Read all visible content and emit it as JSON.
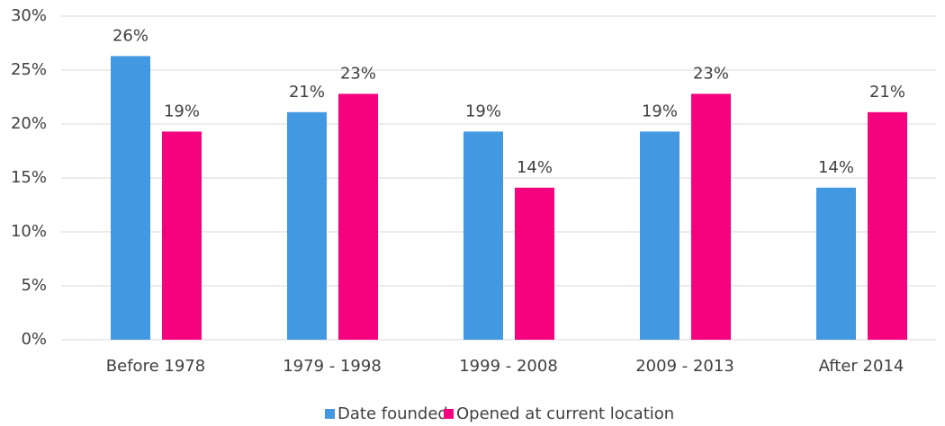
{
  "chart_data": {
    "type": "bar",
    "categories": [
      "Before 1978",
      "1979 - 1998",
      "1999 - 2008",
      "2009 - 2013",
      "After 2014"
    ],
    "series": [
      {
        "name": "Date founded",
        "color": "#4299e1",
        "values": [
          26.3,
          21.1,
          19.3,
          19.3,
          14.1
        ],
        "value_labels": [
          "26%",
          "21%",
          "19%",
          "19%",
          "14%"
        ]
      },
      {
        "name": "Opened at current location",
        "color": "#f5037e",
        "values": [
          19.3,
          22.8,
          14.1,
          22.8,
          21.1
        ],
        "value_labels": [
          "19%",
          "23%",
          "14%",
          "23%",
          "21%"
        ]
      }
    ],
    "ylim": [
      0,
      30
    ],
    "yticks": [
      {
        "value": 0,
        "label": "0%"
      },
      {
        "value": 5,
        "label": "5%"
      },
      {
        "value": 10,
        "label": "10%"
      },
      {
        "value": 15,
        "label": "15%"
      },
      {
        "value": 20,
        "label": "20%"
      },
      {
        "value": 25,
        "label": "25%"
      },
      {
        "value": 30,
        "label": "30%"
      }
    ],
    "grid": true,
    "legend": "bottom"
  }
}
